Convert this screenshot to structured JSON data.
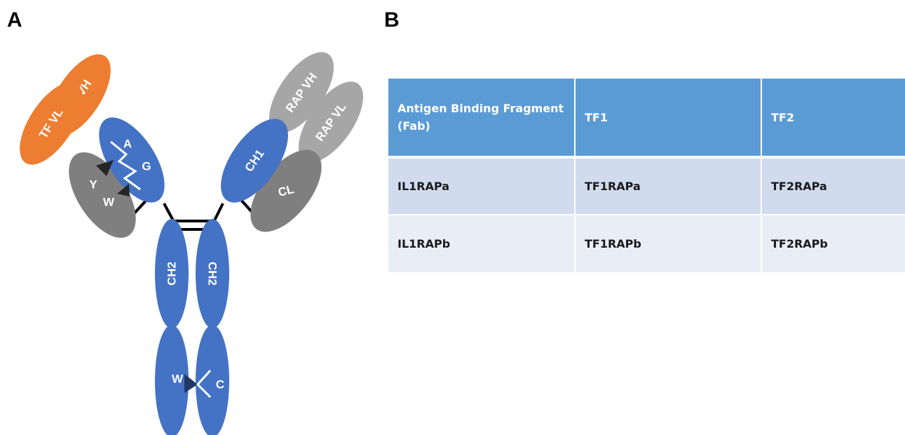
{
  "panels": {
    "a_label": "A",
    "b_label": "B"
  },
  "antibody": {
    "tf_vh": "TF VH",
    "tf_vl": "TF VL",
    "rap_vh": "RAP VH",
    "rap_vl": "RAP VL",
    "ch1": "CH1",
    "cl": "CL",
    "ch2_left": "CH2",
    "ch2_right": "CH2",
    "knob_a": "A",
    "knob_g": "G",
    "knob_y": "Y",
    "knob_w": "W",
    "fc_w": "W",
    "fc_c": "C",
    "colors": {
      "orange": "#ed7d31",
      "light_gray": "#a6a6a6",
      "dark_gray": "#7f7f7f",
      "blue": "#4472c4",
      "navy": "#1f3864",
      "linker": "#000000"
    }
  },
  "table": {
    "headers": [
      "Antigen Binding Fragment (Fab)",
      "TF1",
      "TF2"
    ],
    "rows": [
      [
        "IL1RAPa",
        "TF1RAPa",
        "TF2RAPa"
      ],
      [
        "IL1RAPb",
        "TF1RAPb",
        "TF2RAPb"
      ]
    ],
    "colors": {
      "header_bg": "#5b9bd5",
      "row_a_bg": "#d0dcee",
      "row_b_bg": "#e9edf5"
    }
  }
}
